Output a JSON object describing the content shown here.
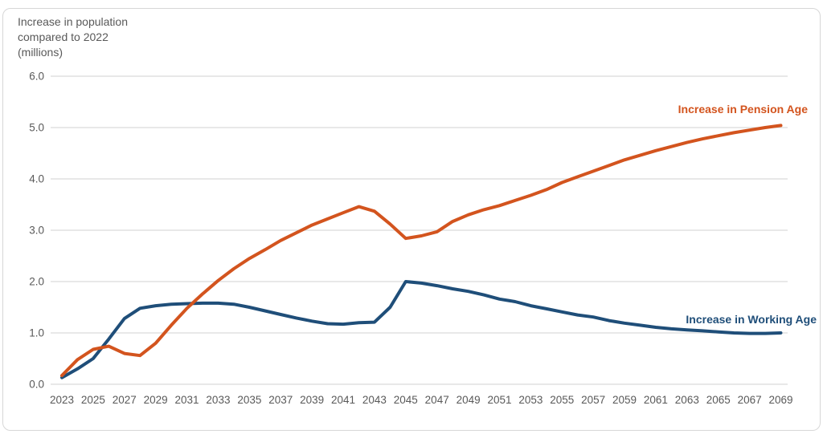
{
  "figure": {
    "title_lines": [
      "Increase in population",
      "compared to 2022",
      "(millions)"
    ]
  },
  "colors": {
    "pension_line": "#d3541e",
    "working_line": "#1f4e79",
    "gridline": "#d9d9d9",
    "axis_text": "#595959",
    "title_text": "#595959",
    "card_border": "#d7d7d7",
    "background": "#ffffff"
  },
  "chart_data": {
    "type": "line",
    "title": "Increase in population compared to 2022 (millions)",
    "xlabel": "",
    "ylabel": "Increase in population compared to 2022 (millions)",
    "ylim": [
      0.0,
      6.0
    ],
    "yticks": [
      0.0,
      1.0,
      2.0,
      3.0,
      4.0,
      5.0,
      6.0
    ],
    "ytick_labels": [
      "0.0",
      "1.0",
      "2.0",
      "3.0",
      "4.0",
      "5.0",
      "6.0"
    ],
    "grid": "horizontal",
    "legend_position": "inline-end-of-line",
    "x": [
      2023,
      2024,
      2025,
      2026,
      2027,
      2028,
      2029,
      2030,
      2031,
      2032,
      2033,
      2034,
      2035,
      2036,
      2037,
      2038,
      2039,
      2040,
      2041,
      2042,
      2043,
      2044,
      2045,
      2046,
      2047,
      2048,
      2049,
      2050,
      2051,
      2052,
      2053,
      2054,
      2055,
      2056,
      2057,
      2058,
      2059,
      2060,
      2061,
      2062,
      2063,
      2064,
      2065,
      2066,
      2067,
      2068,
      2069
    ],
    "xtick_labels": [
      "2023",
      "2025",
      "2027",
      "2029",
      "2031",
      "2033",
      "2035",
      "2037",
      "2039",
      "2041",
      "2043",
      "2045",
      "2047",
      "2049",
      "2051",
      "2053",
      "2055",
      "2057",
      "2059",
      "2061",
      "2063",
      "2065",
      "2067",
      "2069"
    ],
    "series": [
      {
        "name": "Increase in Pension Age",
        "color": "#d3541e",
        "values": [
          0.17,
          0.48,
          0.68,
          0.74,
          0.6,
          0.56,
          0.8,
          1.15,
          1.48,
          1.76,
          2.02,
          2.25,
          2.45,
          2.62,
          2.8,
          2.95,
          3.1,
          3.22,
          3.34,
          3.46,
          3.37,
          3.12,
          2.84,
          2.89,
          2.97,
          3.17,
          3.3,
          3.4,
          3.48,
          3.58,
          3.68,
          3.79,
          3.93,
          4.04,
          4.15,
          4.26,
          4.37,
          4.46,
          4.55,
          4.63,
          4.71,
          4.78,
          4.84,
          4.9,
          4.95,
          5.0,
          5.04
        ]
      },
      {
        "name": "Increase in Working Age",
        "color": "#1f4e79",
        "values": [
          0.13,
          0.3,
          0.5,
          0.88,
          1.28,
          1.48,
          1.53,
          1.56,
          1.57,
          1.58,
          1.58,
          1.56,
          1.5,
          1.43,
          1.36,
          1.29,
          1.23,
          1.18,
          1.17,
          1.2,
          1.21,
          1.5,
          2.0,
          1.97,
          1.92,
          1.86,
          1.81,
          1.74,
          1.66,
          1.61,
          1.53,
          1.47,
          1.41,
          1.35,
          1.31,
          1.24,
          1.19,
          1.15,
          1.11,
          1.08,
          1.06,
          1.04,
          1.02,
          1.0,
          0.99,
          0.99,
          1.0
        ]
      }
    ]
  }
}
